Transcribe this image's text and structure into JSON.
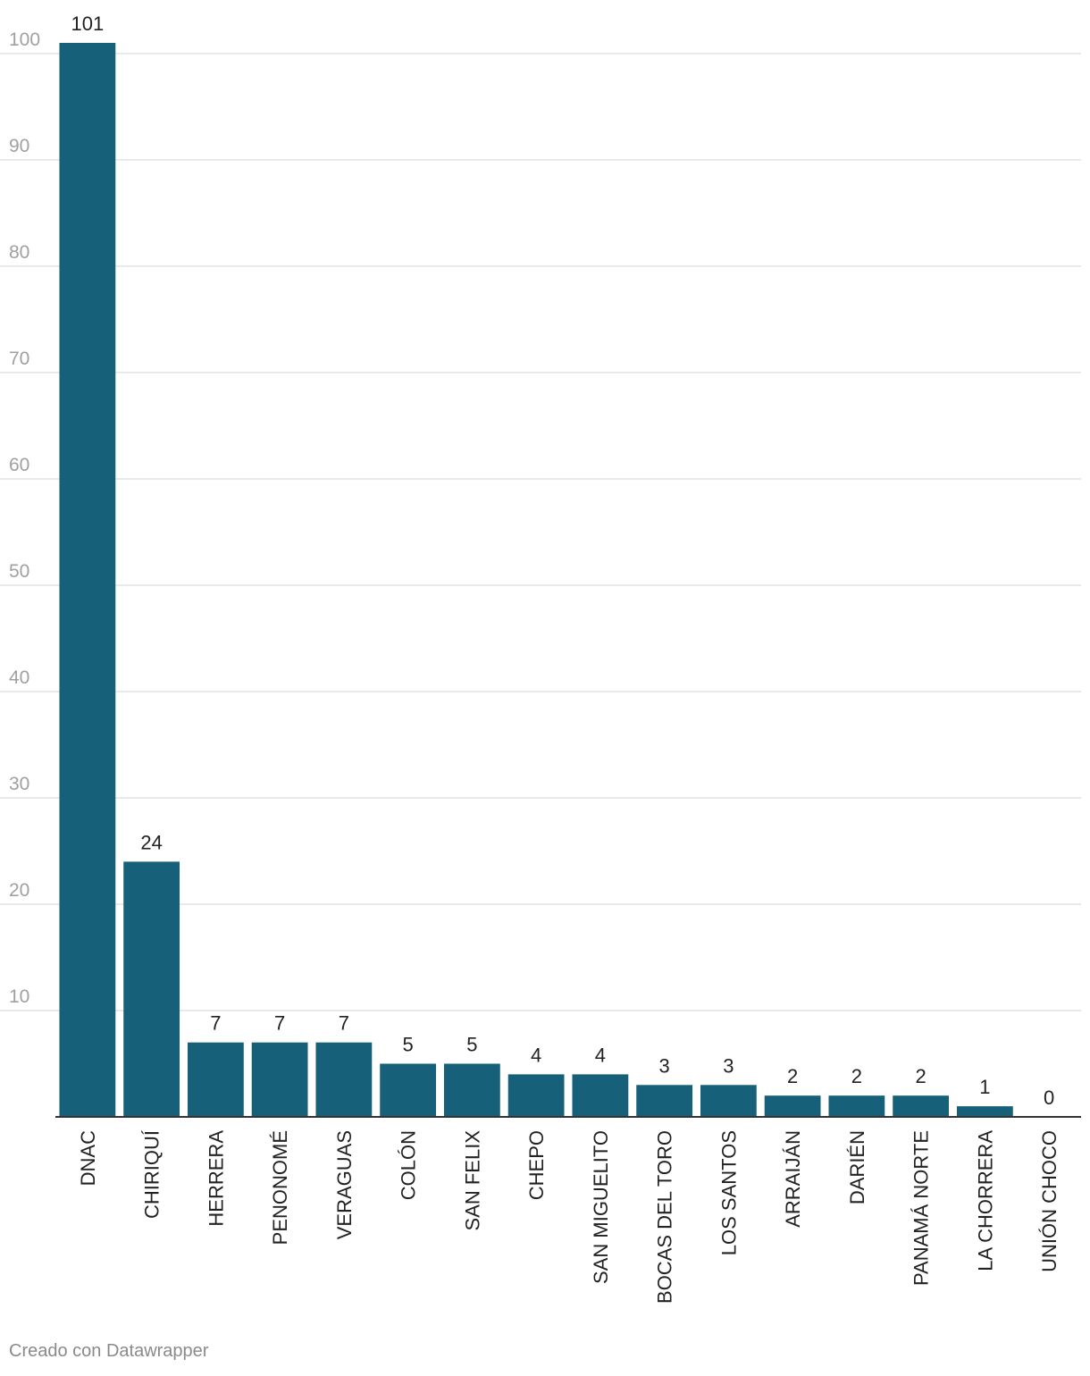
{
  "chart_data": {
    "type": "bar",
    "categories": [
      "DNAC",
      "CHIRIQUÍ",
      "HERRERA",
      "PENONOMÉ",
      "VERAGUAS",
      "COLÓN",
      "SAN FELIX",
      "CHEPO",
      "SAN MIGUELITO",
      "BOCAS DEL TORO",
      "LOS SANTOS",
      "ARRAIJÁN",
      "DARIÉN",
      "PANAMÁ NORTE",
      "LA CHORRERA",
      "UNIÓN CHOCO"
    ],
    "values": [
      101,
      24,
      7,
      7,
      7,
      5,
      5,
      4,
      4,
      3,
      3,
      2,
      2,
      2,
      1,
      0
    ],
    "yticks": [
      10,
      20,
      30,
      40,
      50,
      60,
      70,
      80,
      90,
      100
    ],
    "ylim": [
      0,
      101
    ],
    "grid": true,
    "bar_color": "#17607a",
    "title": "",
    "xlabel": "",
    "ylabel": ""
  },
  "footer": {
    "credit": "Creado con Datawrapper"
  }
}
